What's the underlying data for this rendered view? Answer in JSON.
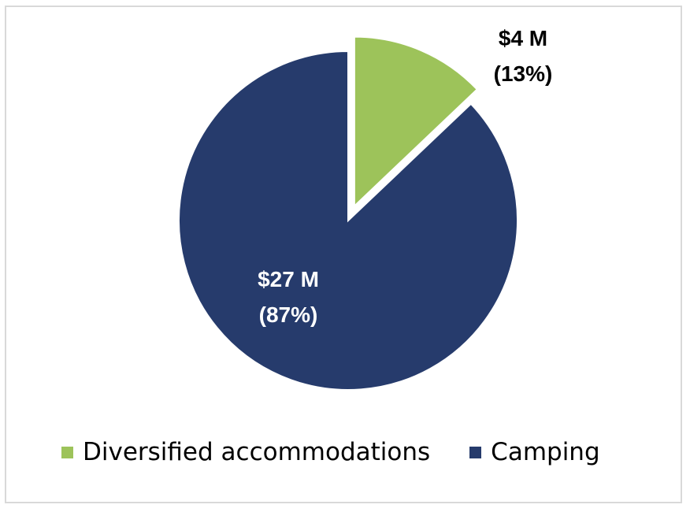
{
  "chart_data": {
    "type": "pie",
    "title": "",
    "slices": [
      {
        "name": "Diversified accommodations",
        "value": 4,
        "value_label": "$4 M",
        "percent_label": "(13%)",
        "percent": 13,
        "color": "#9dc35a",
        "exploded": true
      },
      {
        "name": "Camping",
        "value": 27,
        "value_label": "$27 M",
        "percent_label": "(87%)",
        "percent": 87,
        "color": "#263b6c",
        "exploded": false
      }
    ],
    "legend_position": "bottom",
    "start_angle": "12 o'clock, clockwise"
  }
}
